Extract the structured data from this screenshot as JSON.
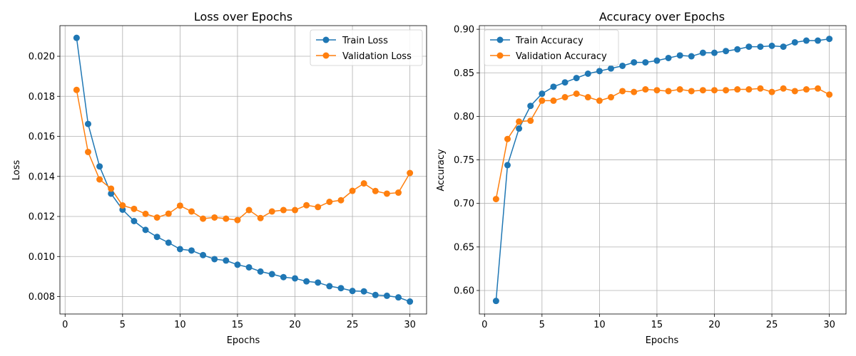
{
  "chart_data": [
    {
      "type": "line",
      "title": "Loss over Epochs",
      "xlabel": "Epochs",
      "ylabel": "Loss",
      "xlim": [
        -0.45,
        31.45
      ],
      "ylim": [
        0.00713,
        0.02153
      ],
      "xticks": [
        0,
        5,
        10,
        15,
        20,
        25,
        30
      ],
      "yticks": [
        0.008,
        0.01,
        0.012,
        0.014,
        0.016,
        0.018,
        0.02
      ],
      "ytick_labels": [
        "0.008",
        "0.010",
        "0.012",
        "0.014",
        "0.016",
        "0.018",
        "0.020"
      ],
      "grid": true,
      "legend_position": "top-right",
      "x": [
        1,
        2,
        3,
        4,
        5,
        6,
        7,
        8,
        9,
        10,
        11,
        12,
        13,
        14,
        15,
        16,
        17,
        18,
        19,
        20,
        21,
        22,
        23,
        24,
        25,
        26,
        27,
        28,
        29,
        30
      ],
      "series": [
        {
          "name": "Train Loss",
          "color": "#1f77b4",
          "values": [
            0.02092,
            0.01662,
            0.0145,
            0.01314,
            0.01234,
            0.01177,
            0.01133,
            0.01098,
            0.01069,
            0.01037,
            0.0103,
            0.01007,
            0.00987,
            0.0098,
            0.00959,
            0.00946,
            0.00925,
            0.00912,
            0.00897,
            0.00891,
            0.00876,
            0.0087,
            0.00852,
            0.00842,
            0.00828,
            0.00826,
            0.00808,
            0.00804,
            0.00796,
            0.00775
          ]
        },
        {
          "name": "Validation Loss",
          "color": "#ff7f0e",
          "values": [
            0.01832,
            0.01522,
            0.01385,
            0.01339,
            0.01255,
            0.01238,
            0.01213,
            0.01195,
            0.01214,
            0.01254,
            0.01225,
            0.01189,
            0.01195,
            0.01189,
            0.01182,
            0.01232,
            0.01192,
            0.01225,
            0.01232,
            0.01232,
            0.01256,
            0.01247,
            0.01273,
            0.01281,
            0.01328,
            0.01365,
            0.01327,
            0.01314,
            0.01319,
            0.01417
          ]
        }
      ]
    },
    {
      "type": "line",
      "title": "Accuracy over Epochs",
      "xlabel": "Epochs",
      "ylabel": "Accuracy",
      "xlim": [
        -0.45,
        31.45
      ],
      "ylim": [
        0.573,
        0.9042
      ],
      "xticks": [
        0,
        5,
        10,
        15,
        20,
        25,
        30
      ],
      "yticks": [
        0.6,
        0.65,
        0.7,
        0.75,
        0.8,
        0.85,
        0.9
      ],
      "ytick_labels": [
        "0.60",
        "0.65",
        "0.70",
        "0.75",
        "0.80",
        "0.85",
        "0.90"
      ],
      "grid": true,
      "legend_position": "top-left",
      "x": [
        1,
        2,
        3,
        4,
        5,
        6,
        7,
        8,
        9,
        10,
        11,
        12,
        13,
        14,
        15,
        16,
        17,
        18,
        19,
        20,
        21,
        22,
        23,
        24,
        25,
        26,
        27,
        28,
        29,
        30
      ],
      "series": [
        {
          "name": "Train Accuracy",
          "color": "#1f77b4",
          "values": [
            0.588,
            0.744,
            0.786,
            0.812,
            0.826,
            0.834,
            0.839,
            0.844,
            0.849,
            0.852,
            0.855,
            0.858,
            0.862,
            0.862,
            0.864,
            0.867,
            0.87,
            0.869,
            0.873,
            0.873,
            0.875,
            0.877,
            0.88,
            0.88,
            0.881,
            0.88,
            0.885,
            0.887,
            0.887,
            0.889
          ]
        },
        {
          "name": "Validation Accuracy",
          "color": "#ff7f0e",
          "values": [
            0.705,
            0.774,
            0.794,
            0.795,
            0.818,
            0.818,
            0.822,
            0.826,
            0.822,
            0.818,
            0.822,
            0.829,
            0.828,
            0.831,
            0.83,
            0.829,
            0.831,
            0.829,
            0.83,
            0.83,
            0.83,
            0.831,
            0.831,
            0.832,
            0.828,
            0.832,
            0.829,
            0.831,
            0.832,
            0.825
          ]
        }
      ]
    }
  ]
}
